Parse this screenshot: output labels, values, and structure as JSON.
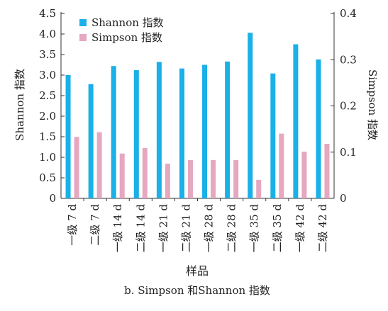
{
  "chart_data": {
    "type": "bar",
    "categories": [
      "一级 7 d",
      "二级 7 d",
      "一级 14 d",
      "二级 14 d",
      "一级 21 d",
      "二级 21 d",
      "一级 28 d",
      "二级 28 d",
      "一级 35 d",
      "二级 35 d",
      "一级 42 d",
      "二级 42 d"
    ],
    "series": [
      {
        "name": "Shannon 指数",
        "axis": "left",
        "color": "#1ab0e8",
        "values": [
          3.0,
          2.78,
          3.22,
          3.12,
          3.32,
          3.16,
          3.25,
          3.33,
          4.03,
          3.04,
          3.75,
          3.38
        ]
      },
      {
        "name": "Simpson 指数",
        "axis": "right",
        "color": "#e6a7c0",
        "values": [
          0.133,
          0.143,
          0.097,
          0.109,
          0.075,
          0.083,
          0.083,
          0.083,
          0.04,
          0.14,
          0.101,
          0.118
        ]
      }
    ],
    "xlabel": "样品",
    "ylabel_left": "Shannon 指数",
    "ylabel_right": "Simpson 指数",
    "ylim_left": [
      0,
      4.5
    ],
    "yticks_left": [
      "0",
      "0.5",
      "1.0",
      "1.5",
      "2.0",
      "2.5",
      "3.0",
      "3.5",
      "4.0",
      "4.5"
    ],
    "ylim_right": [
      0,
      0.4
    ],
    "yticks_right": [
      "0",
      "0.1",
      "0.2",
      "0.3",
      "0.4"
    ],
    "legend_position": "top-left",
    "grid": false,
    "caption": "b. Simpson 和Shannon 指数"
  }
}
